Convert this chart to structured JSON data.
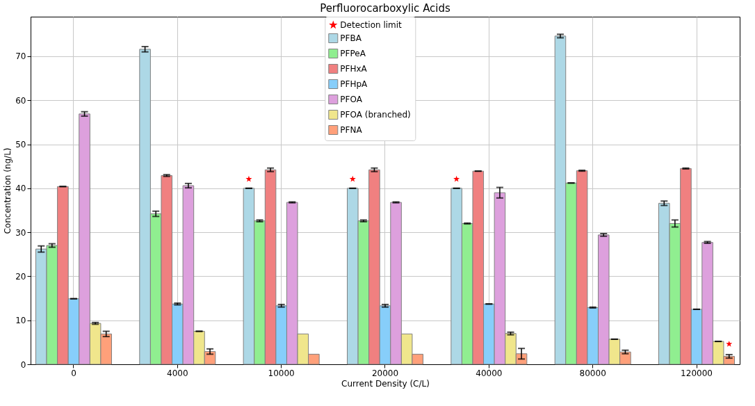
{
  "chart_data": {
    "type": "bar",
    "title": "Perfluorocarboxylic Acids",
    "xlabel": "Current Density (C/L)",
    "ylabel": "Concentration (ng/L)",
    "categories": [
      "0",
      "4000",
      "10000",
      "20000",
      "40000",
      "80000",
      "120000"
    ],
    "ylim": [
      0,
      79
    ],
    "yticks": [
      0,
      10,
      20,
      30,
      40,
      50,
      60,
      70
    ],
    "grid": true,
    "legend": "top",
    "series": [
      {
        "name": "Detection limit",
        "type": "scatter",
        "marker": "star",
        "color": "#ff0000",
        "x": [
          "10000",
          "20000",
          "40000",
          "120000"
        ],
        "values": [
          42.1,
          42.1,
          42.1,
          4.6
        ]
      },
      {
        "name": "PFBA",
        "color": "#add8e6",
        "values": [
          26.2,
          71.6,
          40,
          40,
          40,
          74.6,
          36.6
        ],
        "errors": [
          0.7,
          0.6,
          0,
          0,
          0,
          0.4,
          0.5
        ]
      },
      {
        "name": "PFPeA",
        "color": "#90ee90",
        "values": [
          27.0,
          34.2,
          32.6,
          32.6,
          32.0,
          41.2,
          32.0
        ],
        "errors": [
          0.4,
          0.6,
          0.2,
          0.2,
          0.1,
          0,
          0.8
        ]
      },
      {
        "name": "PFHxA",
        "color": "#f08080",
        "values": [
          40.4,
          42.9,
          44.2,
          44.2,
          43.9,
          44.0,
          44.5
        ],
        "errors": [
          0,
          0.2,
          0.4,
          0.4,
          0,
          0.1,
          0.1
        ]
      },
      {
        "name": "PFHpA",
        "color": "#87cefa",
        "values": [
          14.9,
          13.7,
          13.3,
          13.3,
          13.7,
          12.9,
          12.5
        ],
        "errors": [
          0,
          0.2,
          0.3,
          0.3,
          0,
          0.1,
          0
        ]
      },
      {
        "name": "PFOA",
        "color": "#dda0dd",
        "values": [
          56.9,
          40.6,
          36.8,
          36.8,
          39.0,
          29.4,
          27.7
        ],
        "errors": [
          0.5,
          0.5,
          0.1,
          0.1,
          1.2,
          0.3,
          0.2
        ]
      },
      {
        "name": "PFOA (branched)",
        "color": "#f0e68c",
        "values": [
          9.3,
          7.5,
          6.9,
          6.9,
          7.0,
          5.7,
          5.2
        ],
        "errors": [
          0.2,
          0,
          null,
          null,
          0.3,
          0,
          0
        ]
      },
      {
        "name": "PFNA",
        "color": "#ffa07a",
        "values": [
          6.9,
          2.9,
          2.3,
          2.3,
          2.4,
          2.8,
          1.8
        ],
        "errors": [
          0.6,
          0.6,
          null,
          null,
          1.2,
          0.4,
          0.4
        ]
      }
    ]
  }
}
